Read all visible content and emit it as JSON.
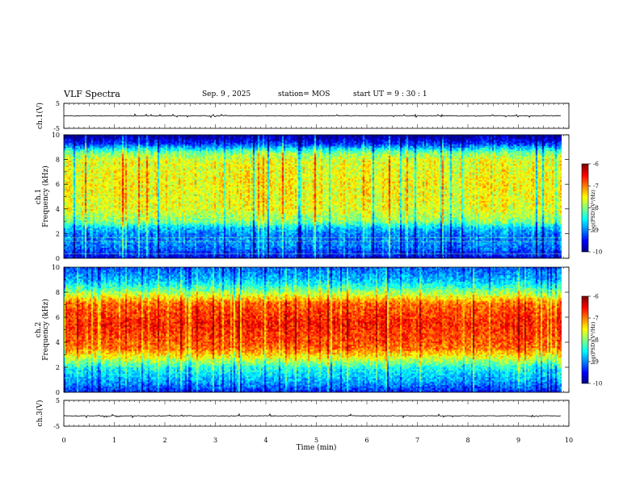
{
  "header": {
    "title": "VLF Spectra",
    "date": "Sep. 9 , 2025",
    "station": "station= MOS",
    "start": "start  UT =   9 : 30 : 1"
  },
  "chart_data": {
    "type": "heatmap",
    "title": "VLF Spectra",
    "xlabel": "Time (min)",
    "xlim": [
      0,
      10
    ],
    "x_ticks": [
      "0",
      "1",
      "2",
      "3",
      "4",
      "5",
      "6",
      "7",
      "8",
      "9",
      "10"
    ],
    "data_end_min": 9.85,
    "panels": [
      {
        "id": "ch1-waveform",
        "type": "line",
        "ylabel": "ch.1(V)",
        "ylim": [
          -5,
          5
        ],
        "y_ticks": [
          "5",
          "-5"
        ],
        "baseline_value": 0
      },
      {
        "id": "ch1-spectrogram",
        "type": "heatmap",
        "ylabel_top": "ch.1",
        "ylabel": "Frequency (kHz)",
        "ylim": [
          0,
          10
        ],
        "y_ticks": [
          "0",
          "2",
          "4",
          "6",
          "8",
          "10"
        ],
        "band_profile": [
          {
            "f": 0.0,
            "level": -9.6
          },
          {
            "f": 0.5,
            "level": -9.3
          },
          {
            "f": 1.0,
            "level": -9.0
          },
          {
            "f": 2.0,
            "level": -9.0
          },
          {
            "f": 2.6,
            "level": -8.6
          },
          {
            "f": 3.0,
            "level": -8.0
          },
          {
            "f": 4.0,
            "level": -7.6
          },
          {
            "f": 6.0,
            "level": -7.5
          },
          {
            "f": 8.0,
            "level": -7.6
          },
          {
            "f": 8.6,
            "level": -8.0
          },
          {
            "f": 9.0,
            "level": -8.7
          },
          {
            "f": 9.4,
            "level": -9.4
          },
          {
            "f": 10.0,
            "level": -9.9
          }
        ],
        "colorbar": {
          "label": "log(PSD)(V²/Hz)",
          "range": [
            -10,
            -6
          ],
          "ticks": [
            "-6",
            "-7",
            "-8",
            "-9",
            "-10"
          ]
        }
      },
      {
        "id": "ch2-spectrogram",
        "type": "heatmap",
        "ylabel_top": "ch.2",
        "ylabel": "Frequency (kHz)",
        "ylim": [
          0,
          10
        ],
        "y_ticks": [
          "0",
          "2",
          "4",
          "6",
          "8",
          "10"
        ],
        "band_profile": [
          {
            "f": 0.0,
            "level": -9.4
          },
          {
            "f": 1.0,
            "level": -8.8
          },
          {
            "f": 2.0,
            "level": -8.4
          },
          {
            "f": 2.8,
            "level": -7.6
          },
          {
            "f": 3.6,
            "level": -6.9
          },
          {
            "f": 5.5,
            "level": -6.6
          },
          {
            "f": 7.2,
            "level": -6.9
          },
          {
            "f": 7.8,
            "level": -7.6
          },
          {
            "f": 8.4,
            "level": -8.2
          },
          {
            "f": 9.0,
            "level": -8.7
          },
          {
            "f": 10.0,
            "level": -9.1
          }
        ],
        "colorbar": {
          "label": "log(PSD)(V²/Hz)",
          "range": [
            -10,
            -6
          ],
          "ticks": [
            "-6",
            "-7",
            "-8",
            "-9",
            "-10"
          ]
        }
      },
      {
        "id": "ch3-waveform",
        "type": "line",
        "ylabel": "ch.3(V)",
        "ylim": [
          -5,
          5
        ],
        "y_ticks": [
          "5",
          "-5"
        ],
        "baseline_value": -1
      }
    ]
  }
}
